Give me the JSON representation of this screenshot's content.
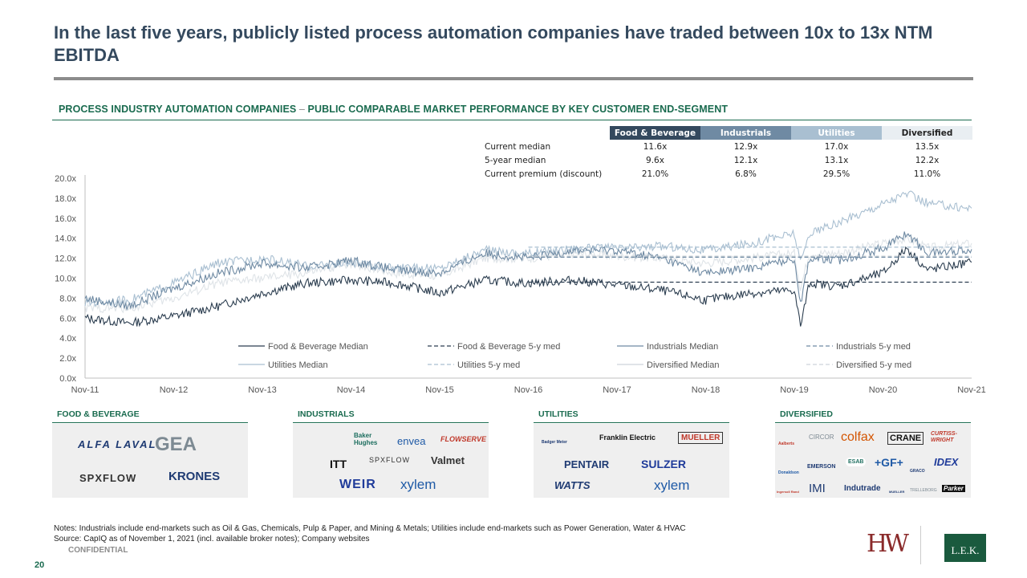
{
  "title": "In the last five years, publicly listed process automation companies have traded between 10x to 13x NTM EBITDA",
  "section": {
    "title_a": "PROCESS INDUSTRY AUTOMATION COMPANIES",
    "separator": "–",
    "title_b": "PUBLIC COMPARABLE MARKET PERFORMANCE BY KEY CUSTOMER END-SEGMENT"
  },
  "median_table": {
    "headers": [
      "Food & Beverage",
      "Industrials",
      "Utilities",
      "Diversified"
    ],
    "rows": [
      {
        "label": "Current median",
        "values": [
          "11.6x",
          "12.9x",
          "17.0x",
          "13.5x"
        ]
      },
      {
        "label": "5-year median",
        "values": [
          "9.6x",
          "12.1x",
          "13.1x",
          "12.2x"
        ]
      },
      {
        "label": "Current premium (discount)",
        "values": [
          "21.0%",
          "6.8%",
          "29.5%",
          "11.0%"
        ]
      }
    ],
    "header_colors": [
      "#34495e",
      "#6f8aa3",
      "#a9bfd1",
      "#e9eef2"
    ]
  },
  "chart_data": {
    "type": "line",
    "title": "",
    "xlabel": "",
    "ylabel": "",
    "x_ticks": [
      "Nov-11",
      "Nov-12",
      "Nov-13",
      "Nov-14",
      "Nov-15",
      "Nov-16",
      "Nov-17",
      "Nov-18",
      "Nov-19",
      "Nov-20",
      "Nov-21"
    ],
    "y_ticks": [
      "0.0x",
      "2.0x",
      "4.0x",
      "6.0x",
      "8.0x",
      "10.0x",
      "12.0x",
      "14.0x",
      "16.0x",
      "18.0x",
      "20.0x"
    ],
    "ylim": [
      0,
      20
    ],
    "x_range": [
      "Nov-11",
      "Nov-21"
    ],
    "grid": false,
    "legend_position": "bottom-inside",
    "series": [
      {
        "name": "Food & Beverage Median",
        "color": "#2c3e50",
        "style": "solid",
        "x": [
          2011.83,
          2012.33,
          2012.83,
          2013.33,
          2013.83,
          2014.33,
          2014.83,
          2015.33,
          2015.83,
          2016.33,
          2016.83,
          2017.33,
          2017.83,
          2018.33,
          2018.83,
          2019.33,
          2019.83,
          2019.9,
          2020.0,
          2020.33,
          2020.83,
          2021.1,
          2021.33,
          2021.83
        ],
        "values": [
          6.0,
          5.5,
          6.2,
          7.2,
          8.5,
          9.5,
          9.8,
          9.5,
          8.5,
          9.8,
          9.5,
          9.8,
          9.3,
          8.8,
          7.8,
          8.5,
          8.8,
          5.2,
          9.5,
          9.2,
          10.5,
          13.0,
          10.8,
          11.6
        ]
      },
      {
        "name": "Food & Beverage 5-y med",
        "color": "#2c3e50",
        "style": "dashed",
        "x": [
          2016.83,
          2021.83
        ],
        "values": [
          9.6,
          9.6
        ]
      },
      {
        "name": "Industrials Median",
        "color": "#6f8aa3",
        "style": "solid",
        "x": [
          2011.83,
          2012.33,
          2012.83,
          2013.33,
          2013.83,
          2014.33,
          2014.83,
          2015.33,
          2015.83,
          2016.33,
          2016.83,
          2017.33,
          2017.83,
          2018.33,
          2018.83,
          2019.33,
          2019.83,
          2019.9,
          2020.0,
          2020.33,
          2020.83,
          2021.1,
          2021.33,
          2021.83
        ],
        "values": [
          8.0,
          7.2,
          9.0,
          10.5,
          11.5,
          11.0,
          11.8,
          10.8,
          10.5,
          12.5,
          12.0,
          12.8,
          12.8,
          12.0,
          10.5,
          11.0,
          12.0,
          7.5,
          12.0,
          11.8,
          13.0,
          14.5,
          12.5,
          12.9
        ]
      },
      {
        "name": "Industrials 5-y med",
        "color": "#6f8aa3",
        "style": "dashed",
        "x": [
          2016.83,
          2021.83
        ],
        "values": [
          12.1,
          12.1
        ]
      },
      {
        "name": "Utilities Median",
        "color": "#a9bfd1",
        "style": "solid",
        "x": [
          2011.83,
          2012.33,
          2012.83,
          2013.33,
          2013.83,
          2014.33,
          2014.83,
          2015.33,
          2015.83,
          2016.33,
          2016.83,
          2017.33,
          2017.83,
          2018.33,
          2018.83,
          2019.33,
          2019.83,
          2019.9,
          2020.0,
          2020.33,
          2020.83,
          2021.1,
          2021.33,
          2021.83
        ],
        "values": [
          7.5,
          7.8,
          9.5,
          11.5,
          12.0,
          11.2,
          11.5,
          11.0,
          11.0,
          12.8,
          12.5,
          13.0,
          13.0,
          13.2,
          12.8,
          13.5,
          14.5,
          11.5,
          14.5,
          15.5,
          17.5,
          18.5,
          17.5,
          17.0
        ]
      },
      {
        "name": "Utilities 5-y med",
        "color": "#a9bfd1",
        "style": "dashed",
        "x": [
          2016.83,
          2021.83
        ],
        "values": [
          13.1,
          13.1
        ]
      },
      {
        "name": "Diversified Median",
        "color": "#dfe4e8",
        "style": "solid",
        "x": [
          2011.83,
          2012.33,
          2012.83,
          2013.33,
          2013.83,
          2014.33,
          2014.83,
          2015.33,
          2015.83,
          2016.33,
          2016.83,
          2017.33,
          2017.83,
          2018.33,
          2018.83,
          2019.33,
          2019.83,
          2019.9,
          2020.0,
          2020.33,
          2020.83,
          2021.1,
          2021.33,
          2021.83
        ],
        "values": [
          7.0,
          7.0,
          8.0,
          9.5,
          10.0,
          10.5,
          11.5,
          10.5,
          10.2,
          12.0,
          12.0,
          12.5,
          12.2,
          12.0,
          11.5,
          12.0,
          12.5,
          9.0,
          12.5,
          12.5,
          13.5,
          14.0,
          13.0,
          13.5
        ]
      },
      {
        "name": "Diversified 5-y med",
        "color": "#dfe4e8",
        "style": "dashed",
        "x": [
          2016.83,
          2021.83
        ],
        "values": [
          12.2,
          12.2
        ]
      }
    ]
  },
  "segments": [
    {
      "label": "FOOD & BEVERAGE",
      "logos": [
        {
          "text": "ALFA LAVAL",
          "color": "#1f3b73"
        },
        {
          "text": "GEA",
          "color": "#7d8a93"
        },
        {
          "text": "SPXFLOW",
          "color": "#333333"
        },
        {
          "text": "KRONES",
          "color": "#1f3b73"
        }
      ]
    },
    {
      "label": "INDUSTRIALS",
      "logos": [
        {
          "text": "Baker Hughes",
          "color": "#1d6e5f"
        },
        {
          "text": "envea",
          "color": "#1f5aa6"
        },
        {
          "text": "FLOWSERVE",
          "color": "#c0392b"
        },
        {
          "text": "ITT",
          "color": "#111111"
        },
        {
          "text": "SPXFLOW",
          "color": "#333333"
        },
        {
          "text": "Valmet",
          "color": "#333333"
        },
        {
          "text": "WEIR",
          "color": "#1f3b9a"
        },
        {
          "text": "xylem",
          "color": "#1f5aa6"
        }
      ]
    },
    {
      "label": "UTILITIES",
      "logos": [
        {
          "text": "Badger Meter",
          "color": "#1f3b73"
        },
        {
          "text": "Franklin Electric",
          "color": "#111111"
        },
        {
          "text": "MUELLER",
          "color": "#c0392b"
        },
        {
          "text": "PENTAIR",
          "color": "#1f3b73"
        },
        {
          "text": "SULZER",
          "color": "#1f3b9a"
        },
        {
          "text": "WATTS",
          "color": "#1f3b73"
        },
        {
          "text": "xylem",
          "color": "#1f5aa6"
        }
      ]
    },
    {
      "label": "DIVERSIFIED",
      "logos": [
        {
          "text": "Aalberts",
          "color": "#c0392b"
        },
        {
          "text": "CIRCOR",
          "color": "#7d8a93"
        },
        {
          "text": "colfax",
          "color": "#d35400"
        },
        {
          "text": "CRANE",
          "color": "#111111"
        },
        {
          "text": "CURTISS-WRIGHT",
          "color": "#c0392b"
        },
        {
          "text": "Donaldson",
          "color": "#1f5aa6"
        },
        {
          "text": "EMERSON",
          "color": "#1f3b73"
        },
        {
          "text": "ESAB",
          "color": "#1d6e5f"
        },
        {
          "text": "+GF+",
          "color": "#1f5aa6"
        },
        {
          "text": "GRACO",
          "color": "#1f3b73"
        },
        {
          "text": "IDEX",
          "color": "#1f3b9a"
        },
        {
          "text": "Ingersoll Rand",
          "color": "#c0392b"
        },
        {
          "text": "IMI",
          "color": "#1f3b73"
        },
        {
          "text": "Indutrade",
          "color": "#1f3b73"
        },
        {
          "text": "MUELLER",
          "color": "#1f3b73"
        },
        {
          "text": "TRELLEBORG",
          "color": "#7d8a93"
        },
        {
          "text": "Parker",
          "color": "#111111"
        }
      ]
    }
  ],
  "notes": {
    "line1": "Notes: Industrials include end-markets such as Oil & Gas, Chemicals, Pulp & Paper, and Mining & Metals; Utilities include end-markets such as Power Generation, Water & HVAC",
    "line2": "Source:  CapIQ as of November 1, 2021 (incl. available broker notes); Company websites"
  },
  "footer": {
    "confidential": "CONFIDENTIAL",
    "page_number": "20",
    "hw_logo": "HW",
    "lek_logo": "L.E.K."
  }
}
